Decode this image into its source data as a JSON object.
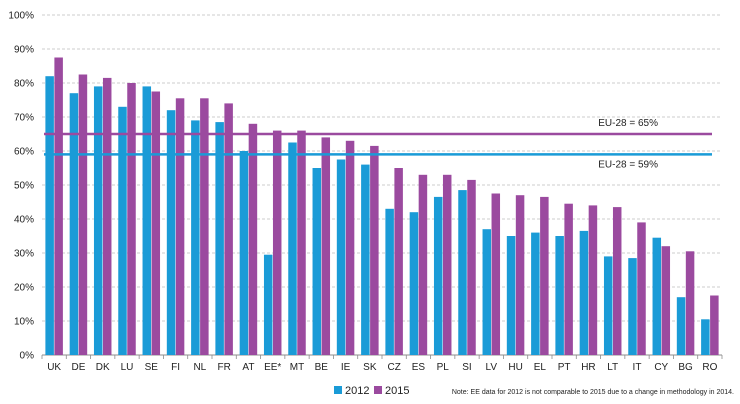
{
  "chart_data": {
    "type": "bar",
    "categories": [
      "UK",
      "DE",
      "DK",
      "LU",
      "SE",
      "FI",
      "NL",
      "FR",
      "AT",
      "EE*",
      "MT",
      "BE",
      "IE",
      "SK",
      "CZ",
      "ES",
      "PL",
      "SI",
      "LV",
      "HU",
      "EL",
      "PT",
      "HR",
      "LT",
      "IT",
      "CY",
      "BG",
      "RO"
    ],
    "series": [
      {
        "name": "2012",
        "color": "#1a9bd7",
        "values": [
          82,
          77,
          79,
          73,
          79,
          72,
          69,
          68.5,
          60,
          29.5,
          62.5,
          55,
          57.5,
          56,
          43,
          42,
          46.5,
          48.5,
          37,
          35,
          36,
          35,
          36.5,
          29,
          28.5,
          34.5,
          17,
          10.5
        ]
      },
      {
        "name": "2015",
        "color": "#9b4a9f",
        "values": [
          87.5,
          82.5,
          81.5,
          80,
          77.5,
          75.5,
          75.5,
          74,
          68,
          66,
          66,
          64,
          63,
          61.5,
          55,
          53,
          53,
          51.5,
          47.5,
          47,
          46.5,
          44.5,
          44,
          43.5,
          39,
          32,
          30.5,
          17.5
        ]
      }
    ],
    "reference_lines": [
      {
        "label": "EU-28 = 65%",
        "value": 65,
        "color": "#9b4a9f"
      },
      {
        "label": "EU-28 = 59%",
        "value": 59,
        "color": "#1a9bd7"
      }
    ],
    "y_ticks": [
      "0%",
      "10%",
      "20%",
      "30%",
      "40%",
      "50%",
      "60%",
      "70%",
      "80%",
      "90%",
      "100%"
    ],
    "ylim": [
      0,
      100
    ],
    "grid": "dashed-horizontal",
    "legend_position": "bottom-center",
    "note": "Note: EE data for 2012 is not comparable to 2015 due to a change in methodology in 2014."
  }
}
